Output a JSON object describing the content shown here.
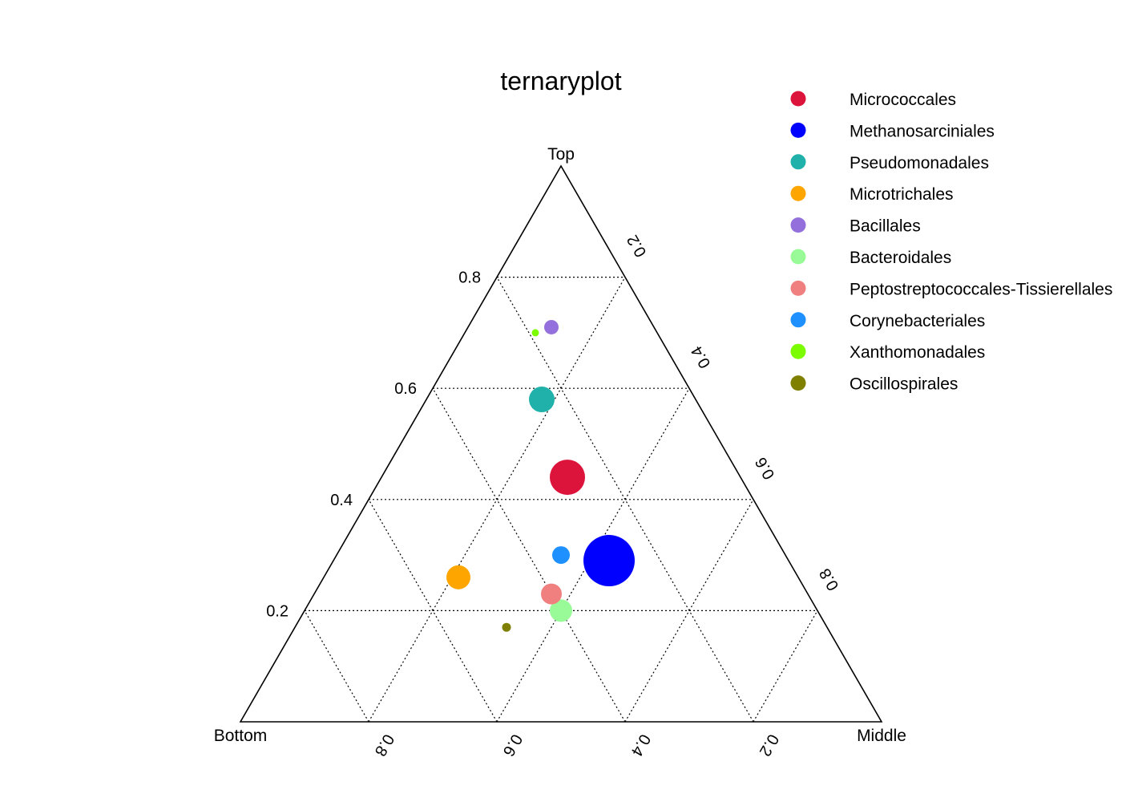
{
  "chart_data": {
    "type": "scatter",
    "subtype": "ternary",
    "title": "ternaryplot",
    "vertex_labels": {
      "top": "Top",
      "left": "Bottom",
      "right": "Middle"
    },
    "ticks": {
      "top_axis": [
        "0.2",
        "0.4",
        "0.6",
        "0.8"
      ],
      "middle_axis": [
        "0.2",
        "0.4",
        "0.6",
        "0.8"
      ],
      "bottom_axis": [
        "0.8",
        "0.6",
        "0.4",
        "0.2"
      ]
    },
    "grid": true,
    "grid_values": [
      0.2,
      0.4,
      0.6,
      0.8
    ],
    "legend_position": "top-right",
    "series": [
      {
        "name": "Micrococcales",
        "color": "#DC143C",
        "top": 0.44,
        "middle": 0.29,
        "bottom": 0.27,
        "size": 44
      },
      {
        "name": "Methanosarciniales",
        "color": "#0000FF",
        "top": 0.29,
        "middle": 0.43,
        "bottom": 0.28,
        "size": 64
      },
      {
        "name": "Pseudomonadales",
        "color": "#20B2AA",
        "top": 0.58,
        "middle": 0.18,
        "bottom": 0.24,
        "size": 32
      },
      {
        "name": "Microtrichales",
        "color": "#FFA500",
        "top": 0.26,
        "middle": 0.21,
        "bottom": 0.53,
        "size": 30
      },
      {
        "name": "Bacillales",
        "color": "#9370DB",
        "top": 0.71,
        "middle": 0.13,
        "bottom": 0.16,
        "size": 18
      },
      {
        "name": "Bacteroidales",
        "color": "#98FB98",
        "top": 0.2,
        "middle": 0.4,
        "bottom": 0.4,
        "size": 28
      },
      {
        "name": "Peptostreptococcales-Tissierellales",
        "color": "#F08080",
        "top": 0.23,
        "middle": 0.37,
        "bottom": 0.4,
        "size": 26
      },
      {
        "name": "Corynebacteriales",
        "color": "#1E90FF",
        "top": 0.3,
        "middle": 0.35,
        "bottom": 0.35,
        "size": 22
      },
      {
        "name": "Xanthomonadales",
        "color": "#7CFC00",
        "top": 0.7,
        "middle": 0.11,
        "bottom": 0.19,
        "size": 9
      },
      {
        "name": "Oscillospirales",
        "color": "#808000",
        "top": 0.17,
        "middle": 0.33,
        "bottom": 0.5,
        "size": 11
      }
    ]
  }
}
